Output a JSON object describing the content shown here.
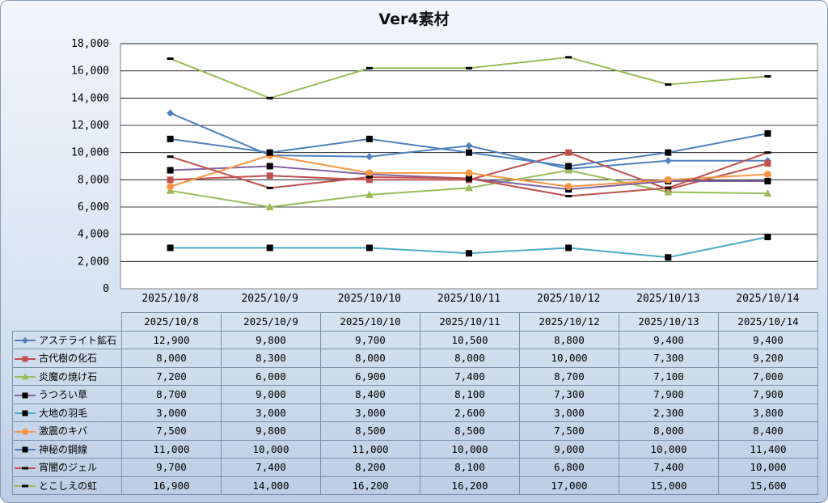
{
  "chart_data": {
    "type": "line",
    "title": "Ver4素材",
    "xlabel": "",
    "ylabel": "",
    "ylim": [
      0,
      18000
    ],
    "yticks": [
      0,
      2000,
      4000,
      6000,
      8000,
      10000,
      12000,
      14000,
      16000,
      18000
    ],
    "ytick_labels": [
      "0",
      "2,000",
      "4,000",
      "6,000",
      "8,000",
      "10,000",
      "12,000",
      "14,000",
      "16,000",
      "18,000"
    ],
    "categories": [
      "2025/10/8",
      "2025/10/9",
      "2025/10/10",
      "2025/10/11",
      "2025/10/12",
      "2025/10/13",
      "2025/10/14"
    ],
    "grid": true,
    "legend": "data-table-below",
    "series": [
      {
        "name": "アステライト鉱石",
        "values": [
          12900,
          9800,
          9700,
          10500,
          8800,
          9400,
          9400
        ],
        "labels": [
          "12,900",
          "9,800",
          "9,700",
          "10,500",
          "8,800",
          "9,400",
          "9,400"
        ],
        "color": "#4f81bd",
        "marker_color": "#4f81bd",
        "marker": "diamond"
      },
      {
        "name": "古代樹の化石",
        "values": [
          8000,
          8300,
          8000,
          8000,
          10000,
          7300,
          9200
        ],
        "labels": [
          "8,000",
          "8,300",
          "8,000",
          "8,000",
          "10,000",
          "7,300",
          "9,200"
        ],
        "color": "#c0504d",
        "marker_color": "#c0504d",
        "marker": "square"
      },
      {
        "name": "炎魔の焼け石",
        "values": [
          7200,
          6000,
          6900,
          7400,
          8700,
          7100,
          7000
        ],
        "labels": [
          "7,200",
          "6,000",
          "6,900",
          "7,400",
          "8,700",
          "7,100",
          "7,000"
        ],
        "color": "#9bbb59",
        "marker_color": "#9bbb59",
        "marker": "triangle"
      },
      {
        "name": "うつろい草",
        "values": [
          8700,
          9000,
          8400,
          8100,
          7300,
          7900,
          7900
        ],
        "labels": [
          "8,700",
          "9,000",
          "8,400",
          "8,100",
          "7,300",
          "7,900",
          "7,900"
        ],
        "color": "#8064a2",
        "marker_color": "#000000",
        "marker": "square"
      },
      {
        "name": "大地の羽毛",
        "values": [
          3000,
          3000,
          3000,
          2600,
          3000,
          2300,
          3800
        ],
        "labels": [
          "3,000",
          "3,000",
          "3,000",
          "2,600",
          "3,000",
          "2,300",
          "3,800"
        ],
        "color": "#4bacc6",
        "marker_color": "#000000",
        "marker": "square"
      },
      {
        "name": "激震のキバ",
        "values": [
          7500,
          9800,
          8500,
          8500,
          7500,
          8000,
          8400
        ],
        "labels": [
          "7,500",
          "9,800",
          "8,500",
          "8,500",
          "7,500",
          "8,000",
          "8,400"
        ],
        "color": "#f79646",
        "marker_color": "#f79646",
        "marker": "circle"
      },
      {
        "name": "神秘の鋼線",
        "values": [
          11000,
          10000,
          11000,
          10000,
          9000,
          10000,
          11400
        ],
        "labels": [
          "11,000",
          "10,000",
          "11,000",
          "10,000",
          "9,000",
          "10,000",
          "11,400"
        ],
        "color": "#4f81bd",
        "marker_color": "#000000",
        "marker": "square"
      },
      {
        "name": "宵闇のジェル",
        "values": [
          9700,
          7400,
          8200,
          8100,
          6800,
          7400,
          10000
        ],
        "labels": [
          "9,700",
          "7,400",
          "8,200",
          "8,100",
          "6,800",
          "7,400",
          "10,000"
        ],
        "color": "#c0504d",
        "marker_color": "#000000",
        "marker": "dash"
      },
      {
        "name": "とこしえの虹",
        "values": [
          16900,
          14000,
          16200,
          16200,
          17000,
          15000,
          15600
        ],
        "labels": [
          "16,900",
          "14,000",
          "16,200",
          "16,200",
          "17,000",
          "15,000",
          "15,600"
        ],
        "color": "#9bbb59",
        "marker_color": "#000000",
        "marker": "dash"
      }
    ]
  }
}
